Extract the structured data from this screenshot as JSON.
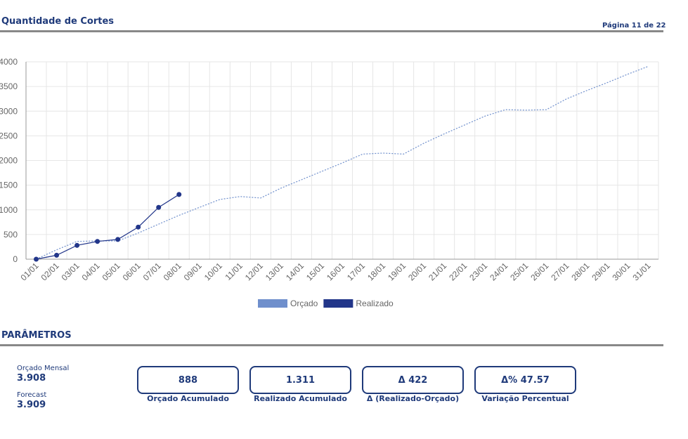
{
  "header": {
    "title": "Quantidade de Cortes",
    "page": "Página 11 de 22"
  },
  "chart_data": {
    "type": "line",
    "categories": [
      "01/01",
      "02/01",
      "03/01",
      "04/01",
      "05/01",
      "06/01",
      "07/01",
      "08/01",
      "09/01",
      "10/01",
      "11/01",
      "12/01",
      "13/01",
      "14/01",
      "15/01",
      "16/01",
      "17/01",
      "18/01",
      "19/01",
      "20/01",
      "21/01",
      "22/01",
      "23/01",
      "24/01",
      "25/01",
      "26/01",
      "27/01",
      "28/01",
      "29/01",
      "30/01",
      "31/01"
    ],
    "series": [
      {
        "name": "Orçado",
        "color": "#6f8fcc",
        "values": [
          0,
          190,
          360,
          370,
          370,
          530,
          710,
          888,
          1050,
          1210,
          1270,
          1240,
          1440,
          1610,
          1780,
          1950,
          2130,
          2150,
          2130,
          2350,
          2540,
          2720,
          2900,
          3030,
          3020,
          3030,
          3250,
          3420,
          3580,
          3750,
          3908
        ]
      },
      {
        "name": "Realizado",
        "color": "#22368a",
        "values": [
          0,
          80,
          280,
          360,
          400,
          650,
          1050,
          1311,
          null,
          null,
          null,
          null,
          null,
          null,
          null,
          null,
          null,
          null,
          null,
          null,
          null,
          null,
          null,
          null,
          null,
          null,
          null,
          null,
          null,
          null,
          null
        ]
      }
    ],
    "ylim": [
      0,
      4000
    ],
    "yticks": [
      0,
      500,
      1000,
      1500,
      2000,
      2500,
      3000,
      3500,
      4000
    ],
    "grid": true,
    "legend": "bottom"
  },
  "parameters": {
    "title": "PARÂMETROS",
    "left": [
      {
        "label": "Orçado Mensal",
        "value": "3.908"
      },
      {
        "label": "Forecast",
        "value": "3.909"
      }
    ],
    "boxes": [
      {
        "value": "888",
        "label": "Orçado Acumulado"
      },
      {
        "value": "1.311",
        "label": "Realizado Acumulado"
      },
      {
        "value": "Δ 422",
        "label": "Δ (Realizado-Orçado)"
      },
      {
        "value": "Δ% 47.57",
        "label": "Variação Percentual"
      }
    ]
  }
}
